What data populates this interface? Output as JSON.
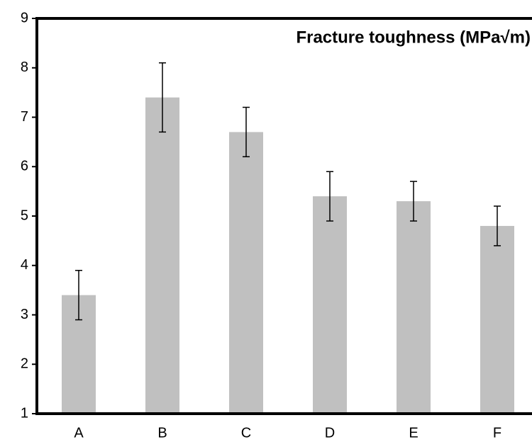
{
  "chart_data": {
    "type": "bar",
    "title": "Fracture toughness (MPa√m)",
    "categories": [
      "A",
      "B",
      "C",
      "D",
      "E",
      "F"
    ],
    "values": [
      3.4,
      7.4,
      6.7,
      5.4,
      5.3,
      4.8
    ],
    "errors": [
      0.5,
      0.7,
      0.5,
      0.5,
      0.4,
      0.4
    ],
    "color": "#c0c0c0",
    "ylim": [
      1,
      9
    ],
    "yticks": [
      1,
      2,
      3,
      4,
      5,
      6,
      7,
      8,
      9
    ],
    "grid": false
  }
}
